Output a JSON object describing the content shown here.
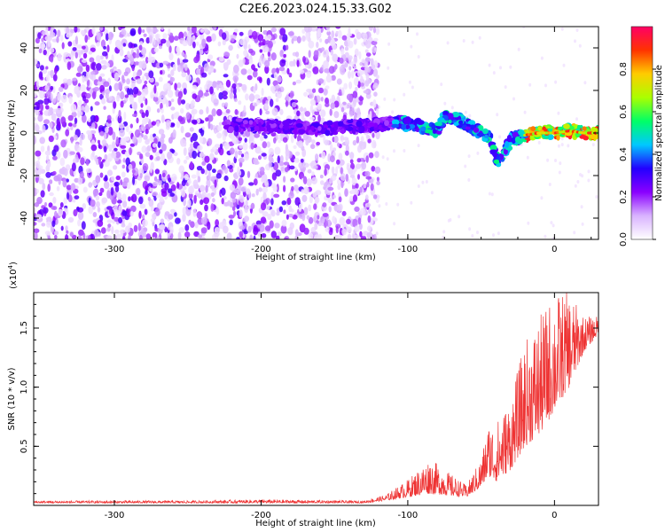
{
  "page": {
    "title": "C2E6.2023.024.15.33.G02"
  },
  "chart_data": [
    {
      "type": "heatmap",
      "xlabel": "Height of straight line (km)",
      "ylabel": "Frequency (Hz)",
      "xlim": [
        -355,
        30
      ],
      "ylim": [
        -50,
        50
      ],
      "xticks": [
        -300,
        -200,
        -100,
        0
      ],
      "yticks": [
        -40,
        -20,
        0,
        20,
        40
      ],
      "colorbar": {
        "label": "Normalized spectral amplitude",
        "range": [
          0.0,
          1.0
        ],
        "ticks": [
          0.0,
          0.2,
          0.4,
          0.6,
          0.8
        ],
        "colors": [
          "#ffffff",
          "#d9b3ff",
          "#8a00ff",
          "#2200ff",
          "#00c8ff",
          "#00ff66",
          "#aaff00",
          "#ffcc00",
          "#ff3300",
          "#ff0066"
        ]
      },
      "ridge": [
        {
          "x": -220,
          "f": 4
        },
        {
          "x": -200,
          "f": 3
        },
        {
          "x": -180,
          "f": 3
        },
        {
          "x": -160,
          "f": 2
        },
        {
          "x": -140,
          "f": 3
        },
        {
          "x": -120,
          "f": 4
        },
        {
          "x": -105,
          "f": 5
        },
        {
          "x": -90,
          "f": 3
        },
        {
          "x": -80,
          "f": 1
        },
        {
          "x": -75,
          "f": 8
        },
        {
          "x": -65,
          "f": 6
        },
        {
          "x": -55,
          "f": 2
        },
        {
          "x": -45,
          "f": -2
        },
        {
          "x": -38,
          "f": -14
        },
        {
          "x": -30,
          "f": -3
        },
        {
          "x": -20,
          "f": -1
        },
        {
          "x": -10,
          "f": 0
        },
        {
          "x": 0,
          "f": 0
        },
        {
          "x": 10,
          "f": 1
        },
        {
          "x": 20,
          "f": 0
        },
        {
          "x": 30,
          "f": 0
        }
      ],
      "noise_edge_x": -130
    },
    {
      "type": "line",
      "xlabel": "Height of straight line (km)",
      "ylabel": "SNR (10 * v/v)",
      "yscale_label": "(x10",
      "yscale_exp": "4",
      "yscale_close": ")",
      "xlim": [
        -355,
        30
      ],
      "ylim": [
        0,
        1.8
      ],
      "xticks": [
        -300,
        -200,
        -100,
        0
      ],
      "yticks": [
        0.5,
        1.0,
        1.5
      ],
      "color": "#ee3333",
      "envelope": [
        {
          "x": -355,
          "base": 0.02,
          "amp": 0.02
        },
        {
          "x": -250,
          "base": 0.02,
          "amp": 0.02
        },
        {
          "x": -200,
          "base": 0.02,
          "amp": 0.03
        },
        {
          "x": -130,
          "base": 0.02,
          "amp": 0.02
        },
        {
          "x": -115,
          "base": 0.04,
          "amp": 0.05
        },
        {
          "x": -100,
          "base": 0.07,
          "amp": 0.15
        },
        {
          "x": -85,
          "base": 0.1,
          "amp": 0.3
        },
        {
          "x": -70,
          "base": 0.08,
          "amp": 0.18
        },
        {
          "x": -60,
          "base": 0.07,
          "amp": 0.1
        },
        {
          "x": -50,
          "base": 0.15,
          "amp": 0.25
        },
        {
          "x": -45,
          "base": 0.25,
          "amp": 0.45
        },
        {
          "x": -40,
          "base": 0.2,
          "amp": 0.5
        },
        {
          "x": -30,
          "base": 0.3,
          "amp": 0.6
        },
        {
          "x": -20,
          "base": 0.5,
          "amp": 0.9
        },
        {
          "x": -10,
          "base": 0.6,
          "amp": 1.0
        },
        {
          "x": 0,
          "base": 0.8,
          "amp": 1.0
        },
        {
          "x": 10,
          "base": 1.0,
          "amp": 0.8
        },
        {
          "x": 20,
          "base": 1.3,
          "amp": 0.3
        },
        {
          "x": 30,
          "base": 1.45,
          "amp": 0.15
        }
      ]
    }
  ]
}
